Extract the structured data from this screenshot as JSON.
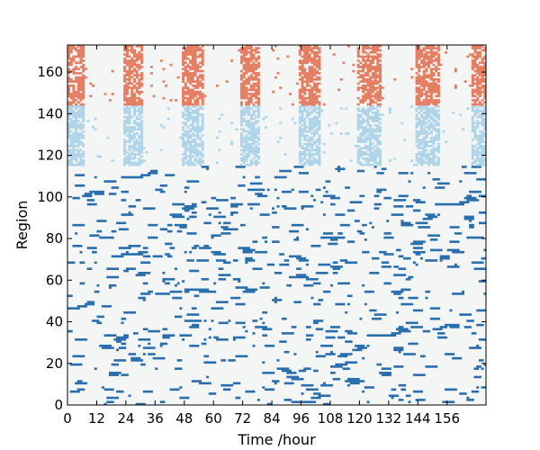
{
  "chart_data": {
    "type": "heatmap",
    "title": "",
    "xlabel": "Time /hour",
    "ylabel": "Region",
    "xlim": [
      0,
      172
    ],
    "ylim": [
      0,
      173
    ],
    "xticks": [
      0,
      12,
      24,
      36,
      48,
      60,
      72,
      84,
      96,
      108,
      120,
      132,
      144,
      156
    ],
    "yticks": [
      0,
      20,
      40,
      60,
      80,
      100,
      120,
      140,
      160
    ],
    "grid": false,
    "legend": "none",
    "colors": {
      "background": "#f4f6f6",
      "group_1_active": "#2a6fad",
      "group_2_active": "#b0d4e8",
      "group_3_active": "#e57f63"
    },
    "groups": [
      {
        "regions": [
          0,
          115
        ],
        "color": "#2a6fad",
        "pattern": "sparse"
      },
      {
        "regions": [
          115,
          144
        ],
        "color": "#b0d4e8",
        "pattern": "periodic"
      },
      {
        "regions": [
          144,
          173
        ],
        "color": "#e57f63",
        "pattern": "periodic"
      }
    ],
    "periodic_bursts_hours": [
      [
        0,
        7
      ],
      [
        23,
        31
      ],
      [
        47,
        56
      ],
      [
        71,
        79
      ],
      [
        95,
        104
      ],
      [
        119,
        129
      ],
      [
        143,
        153
      ],
      [
        166,
        172
      ]
    ],
    "cell_values": "binary activity (1 = active, 0 = inactive) per region per hour"
  }
}
